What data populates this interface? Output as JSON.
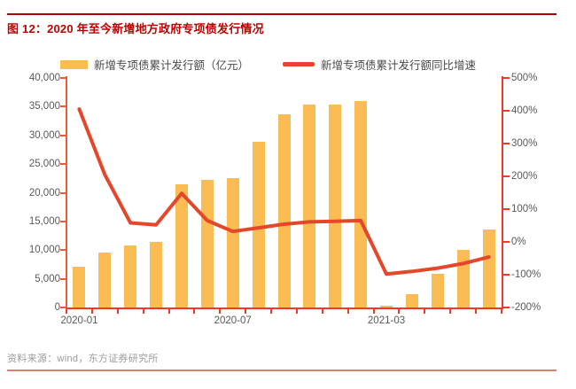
{
  "header": {
    "title": "图 12：2020 年至今新增地方政府专项债发行情况"
  },
  "footer": {
    "source": "资料来源：wind，东方证券研究所"
  },
  "legend": {
    "items": [
      {
        "label": "新增专项债累计发行额（亿元）",
        "swatch": "bar"
      },
      {
        "label": "新增专项债累计发行额同比增速",
        "swatch": "line"
      }
    ]
  },
  "colors": {
    "bar": "#FBBC53",
    "line": "#E5472B",
    "left_axis": "#ED5C36",
    "right_axis": "#F5372B",
    "title": "#C00000",
    "top_rule": "#B40000",
    "bottom_rule": "#DE7F74",
    "axis_text": "#595959",
    "legend_text": "#4A4A4A",
    "source_text": "#9B9B9B"
  },
  "chart_data": {
    "type": "bar",
    "subtype": "combo-bar-line-dual-axis",
    "title": "2020 年至今新增地方政府专项债发行情况",
    "categories": [
      "2020-01",
      "2020-02",
      "2020-03",
      "2020-04",
      "2020-05",
      "2020-06",
      "2020-07",
      "2020-08",
      "2020-09",
      "2020-10",
      "2020-11",
      "2020-12",
      "2021-03",
      "2021-04",
      "2021-05",
      "2021-06",
      "2021-07"
    ],
    "series": [
      {
        "name": "新增专项债累计发行额（亿元）",
        "type": "bar",
        "axis": "left",
        "values": [
          7100,
          9500,
          10850,
          11500,
          21450,
          22250,
          22600,
          28950,
          33600,
          35350,
          35350,
          35950,
          300,
          2300,
          5850,
          10100,
          13550
        ]
      },
      {
        "name": "新增专项债累计发行额同比增速",
        "type": "line",
        "axis": "right",
        "values": [
          405,
          205,
          58,
          52,
          148,
          65,
          32,
          43,
          54,
          61,
          63,
          65,
          -98,
          -90,
          -80,
          -66,
          -46
        ]
      }
    ],
    "left_axis": {
      "min": 0,
      "max": 40000,
      "step": 5000,
      "tick_labels": [
        "40,000",
        "35,000",
        "30,000",
        "25,000",
        "20,000",
        "15,000",
        "10,000",
        "5,000",
        "0"
      ]
    },
    "right_axis": {
      "min": -200,
      "max": 500,
      "step": 100,
      "unit": "%",
      "tick_labels": [
        "500%",
        "400%",
        "300%",
        "200%",
        "100%",
        "0%",
        "-100%",
        "-200%"
      ]
    },
    "x_ticks_shown": [
      {
        "index": 0,
        "label": "2020-01"
      },
      {
        "index": 6,
        "label": "2020-07"
      },
      {
        "index": 12,
        "label": "2021-03"
      }
    ],
    "grid": false,
    "legend_position": "top"
  }
}
